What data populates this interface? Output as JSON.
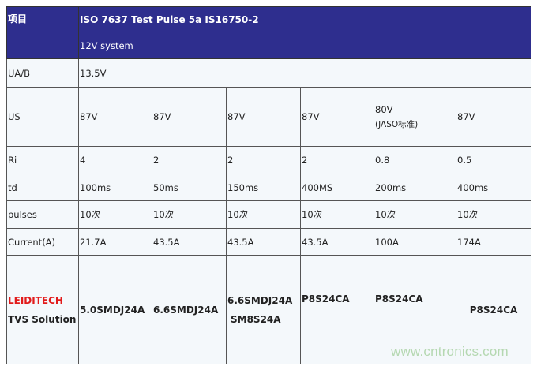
{
  "header": {
    "item_label": "项目",
    "title": "ISO 7637 Test Pulse 5a  IS16750-2",
    "system": "12V  system"
  },
  "rows": {
    "ua": {
      "label": "UA/B",
      "value": "13.5V"
    },
    "us": {
      "label": "US",
      "values": [
        "87V",
        "87V",
        "87V",
        "87V",
        "80V",
        "87V"
      ],
      "note": "(JASO标准)"
    },
    "ri": {
      "label": "Ri",
      "values": [
        "4",
        "2",
        "2",
        "2",
        "0.8",
        "0.5"
      ]
    },
    "td": {
      "label": "td",
      "values": [
        "100ms",
        "50ms",
        "150ms",
        "400MS",
        "200ms",
        "400ms"
      ]
    },
    "pulses": {
      "label": "pulses",
      "values": [
        "10次",
        "10次",
        "10次",
        "10次",
        "10次",
        "10次"
      ]
    },
    "current": {
      "label": "Current(A)",
      "values": [
        "21.7A",
        "43.5A",
        "43.5A",
        "43.5A",
        "100A",
        "174A"
      ]
    },
    "solution": {
      "brand": "LEIDITECH",
      "label": "TVS  Solution",
      "values": [
        "5.0SMDJ24A",
        "6.6SMDJ24A",
        "6.6SMDJ24A",
        "P8S24CA",
        "P8S24CA",
        "P8S24CA"
      ],
      "extra": "SM8S24A"
    }
  },
  "watermark": "www.cntronics.com",
  "colors": {
    "header_bg": "#2e2e8e",
    "brand": "#e21b1b"
  }
}
